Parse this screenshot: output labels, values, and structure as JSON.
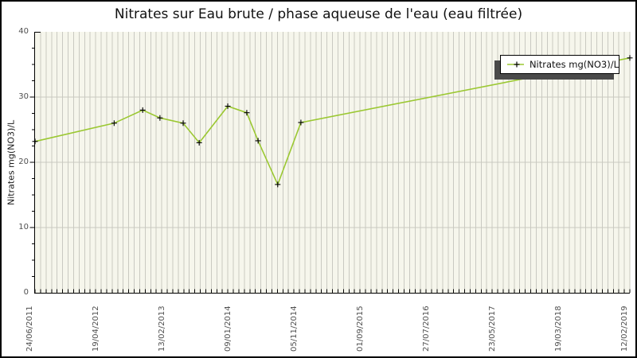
{
  "figure": {
    "border_color": "#000000",
    "background": "#ffffff"
  },
  "chart_data": {
    "type": "line",
    "title": "Nitrates sur Eau brute / phase aqueuse de l'eau (eau filtrée)",
    "xlabel": "",
    "ylabel": "Nitrates mg(NO3)/L",
    "ylim": [
      0,
      40
    ],
    "y_tick_values": [
      0,
      10,
      20,
      30,
      40
    ],
    "y_minor_tick_step": 2.5,
    "x_tick_labels": [
      "24/06/2011",
      "19/04/2012",
      "13/02/2013",
      "09/01/2014",
      "05/11/2014",
      "01/09/2015",
      "27/07/2016",
      "23/05/2017",
      "19/03/2018",
      "12/02/2019"
    ],
    "grid": {
      "vertical_minor_divisions": 108,
      "horizontal_at": [
        10,
        20,
        30
      ]
    },
    "plot_bg": "#f6f6ec",
    "gridline_color": "#c9c9c1",
    "tick_color": "#000000",
    "legend_position": "top-right",
    "legend_shadow_color": "#4a4a4a",
    "series": [
      {
        "name": "Nitrates mg(NO3)/L",
        "color": "#9bc832",
        "marker": "plus",
        "marker_color": "#000000",
        "points": [
          {
            "x_frac": 0.0,
            "date_approx": "24/06/2011",
            "value": 23.2
          },
          {
            "x_frac": 0.133,
            "date_approx": "28/06/2012",
            "value": 26.0
          },
          {
            "x_frac": 0.181,
            "date_approx": "09/11/2012",
            "value": 28.0
          },
          {
            "x_frac": 0.21,
            "date_approx": "31/01/2013",
            "value": 26.8
          },
          {
            "x_frac": 0.249,
            "date_approx": "19/05/2013",
            "value": 26.0
          },
          {
            "x_frac": 0.276,
            "date_approx": "01/08/2013",
            "value": 23.0
          },
          {
            "x_frac": 0.324,
            "date_approx": "14/12/2013",
            "value": 28.6
          },
          {
            "x_frac": 0.356,
            "date_approx": "13/03/2014",
            "value": 27.6
          },
          {
            "x_frac": 0.375,
            "date_approx": "05/05/2014",
            "value": 23.3
          },
          {
            "x_frac": 0.408,
            "date_approx": "06/08/2014",
            "value": 16.6
          },
          {
            "x_frac": 0.447,
            "date_approx": "23/11/2014",
            "value": 26.1
          },
          {
            "x_frac": 1.0,
            "date_approx": "12/02/2019",
            "value": 36.0
          }
        ]
      }
    ]
  }
}
